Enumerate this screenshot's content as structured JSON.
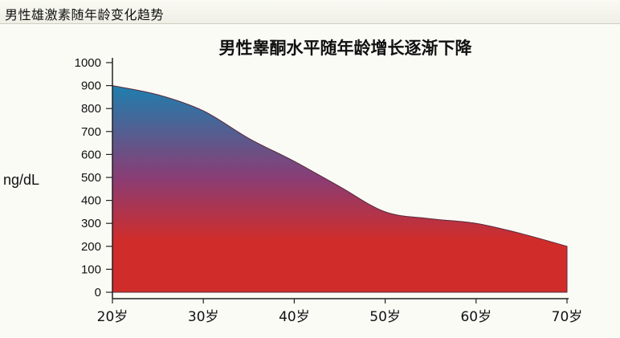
{
  "window": {
    "title": "男性雄激素随年龄变化趋势"
  },
  "colors": {
    "top": "#1e7fae",
    "mid": "#8a3d74",
    "bottom": "#d02d2a"
  },
  "chart_data": {
    "type": "area",
    "title": "男性睾酮水平随年龄增长逐渐下降",
    "ylabel": "ng/dL",
    "xlabel": "",
    "xlim": [
      20,
      70
    ],
    "ylim": [
      0,
      1000
    ],
    "yticks": [
      0,
      100,
      200,
      300,
      400,
      500,
      600,
      700,
      800,
      900,
      1000
    ],
    "xticks": [
      {
        "value": 20,
        "label": "20岁"
      },
      {
        "value": 30,
        "label": "30岁"
      },
      {
        "value": 40,
        "label": "40岁"
      },
      {
        "value": 50,
        "label": "50岁"
      },
      {
        "value": 60,
        "label": "60岁"
      },
      {
        "value": 70,
        "label": "70岁"
      }
    ],
    "x": [
      20,
      25,
      30,
      35,
      40,
      45,
      50,
      55,
      60,
      65,
      70
    ],
    "values": [
      900,
      860,
      790,
      670,
      570,
      460,
      350,
      320,
      300,
      255,
      200
    ],
    "grid": false,
    "legend": "none"
  }
}
